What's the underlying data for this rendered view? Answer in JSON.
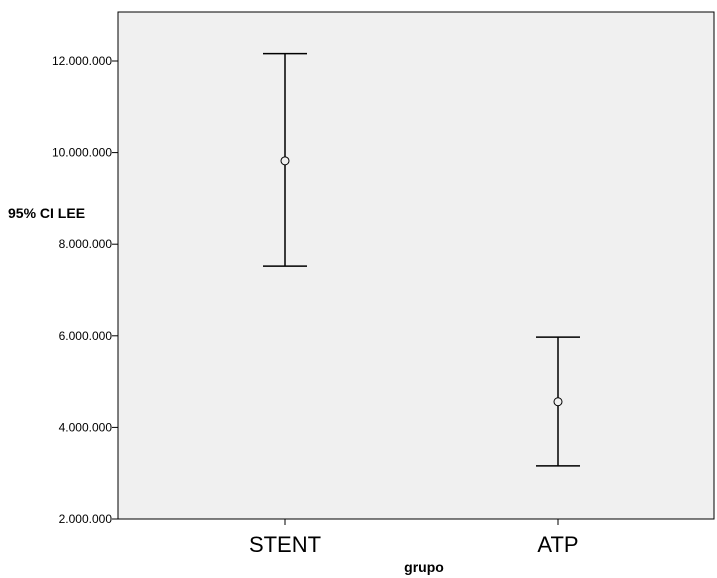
{
  "chart_data": {
    "type": "errorbar",
    "xlabel": "grupo",
    "ylabel": "95% CI LEE",
    "ylim": [
      2000000,
      13000000
    ],
    "yticks": [
      2000000,
      4000000,
      6000000,
      8000000,
      10000000,
      12000000
    ],
    "ytick_labels": [
      "2.000.000",
      "4.000.000",
      "6.000.000",
      "8.000.000",
      "10.000.000",
      "12.000.000"
    ],
    "categories": [
      "STENT",
      "ATP"
    ],
    "mean": [
      9820000,
      4560000
    ],
    "lower": [
      7520000,
      3160000
    ],
    "upper": [
      12160000,
      5970000
    ],
    "plot_background": "#f0f0f0",
    "grid": false
  }
}
